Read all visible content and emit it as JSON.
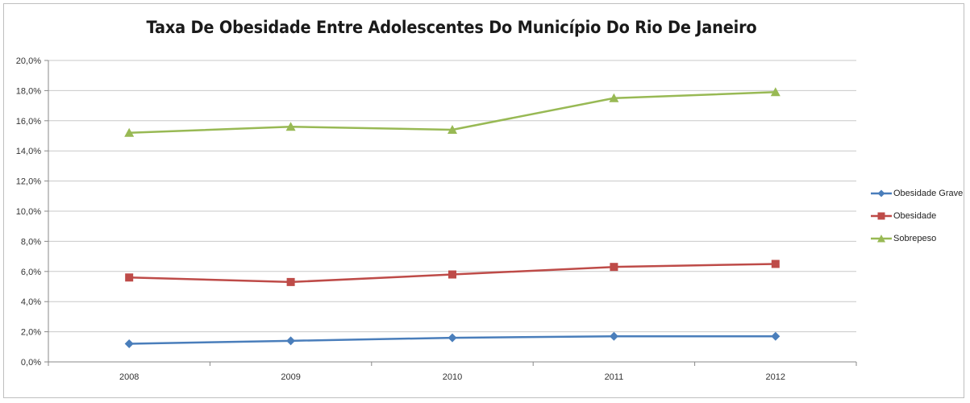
{
  "chart_data": {
    "type": "line",
    "title": "Taxa De Obesidade Entre Adolescentes Do Município Do Rio De Janeiro",
    "xlabel": "",
    "ylabel": "",
    "categories": [
      "2008",
      "2009",
      "2010",
      "2011",
      "2012"
    ],
    "ylim": [
      0,
      20
    ],
    "yticks": [
      "0,0%",
      "2,0%",
      "4,0%",
      "6,0%",
      "8,0%",
      "10,0%",
      "12,0%",
      "14,0%",
      "16,0%",
      "18,0%",
      "20,0%"
    ],
    "grid": true,
    "legend_position": "right",
    "series": [
      {
        "name": "Obesidade Grave",
        "values": [
          1.2,
          1.4,
          1.6,
          1.7,
          1.7
        ],
        "color": "#4a7ebb",
        "marker": "diamond"
      },
      {
        "name": "Obesidade",
        "values": [
          5.6,
          5.3,
          5.8,
          6.3,
          6.5
        ],
        "color": "#be4b48",
        "marker": "square"
      },
      {
        "name": "Sobrepeso",
        "values": [
          15.2,
          15.6,
          15.4,
          17.5,
          17.9
        ],
        "color": "#98b954",
        "marker": "triangle"
      }
    ]
  }
}
